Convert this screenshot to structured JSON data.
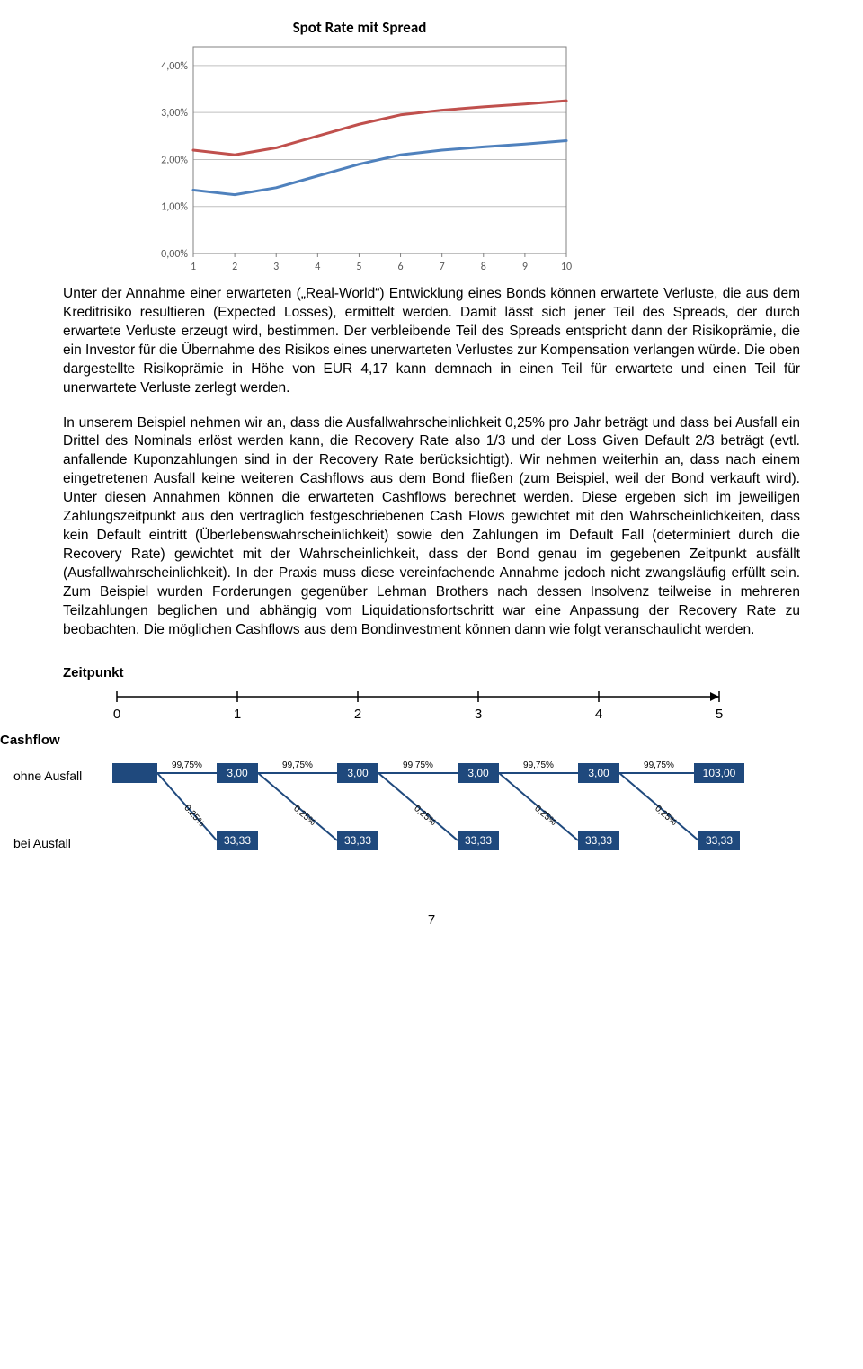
{
  "chart": {
    "title": "Spot Rate mit Spread",
    "y_ticks": [
      "0,00%",
      "1,00%",
      "2,00%",
      "3,00%",
      "4,00%"
    ],
    "y_tick_values": [
      0,
      1,
      2,
      3,
      4
    ],
    "x_ticks": [
      "1",
      "2",
      "3",
      "4",
      "5",
      "6",
      "7",
      "8",
      "9",
      "10"
    ],
    "ylim": [
      0,
      4.4
    ],
    "series": [
      {
        "color": "#c0504d",
        "width": 3,
        "values": [
          2.2,
          2.1,
          2.25,
          2.5,
          2.75,
          2.95,
          3.05,
          3.12,
          3.18,
          3.25
        ]
      },
      {
        "color": "#4f81bd",
        "width": 3,
        "values": [
          1.35,
          1.25,
          1.4,
          1.65,
          1.9,
          2.1,
          2.2,
          2.27,
          2.33,
          2.4
        ]
      }
    ],
    "border_color": "#808080",
    "gridline_color": "#bfbfbf",
    "tick_font_size": 12,
    "title_font_size": 17,
    "background_color": "#ffffff"
  },
  "paragraphs": {
    "p1": "Unter der Annahme einer erwarteten („Real-World“) Entwicklung eines Bonds können erwartete Verluste, die aus dem Kreditrisiko resultieren (Expected Losses), ermittelt werden. Damit lässt sich jener Teil des Spreads, der durch erwartete Verluste erzeugt wird, bestimmen. Der verbleibende Teil des Spreads entspricht dann der Risikoprämie, die ein Investor für die Übernahme des Risikos eines unerwarteten Verlustes zur Kompensation verlangen würde. Die oben dargestellte Risikoprämie in Höhe von EUR 4,17 kann demnach in einen Teil für erwartete und einen Teil für unerwartete Verluste zerlegt werden.",
    "p2": "In unserem Beispiel nehmen wir an, dass die Ausfallwahrscheinlichkeit 0,25% pro Jahr beträgt und dass bei Ausfall ein Drittel des Nominals erlöst werden kann, die Recovery Rate also 1/3 und der Loss Given Default 2/3 beträgt (evtl. anfallende Kuponzahlungen sind in der Recovery Rate berücksichtigt). Wir nehmen weiterhin an, dass nach einem eingetretenen Ausfall keine weiteren Cashflows aus dem Bond fließen (zum Beispiel, weil der Bond verkauft wird). Unter diesen Annahmen können die erwarteten Cashflows berechnet werden. Diese ergeben sich im jeweiligen Zahlungszeitpunkt aus den vertraglich festgeschriebenen Cash Flows gewichtet mit den Wahrscheinlichkeiten, dass kein Default eintritt (Überlebenswahrscheinlichkeit) sowie den Zahlungen im Default Fall (determiniert durch die Recovery Rate) gewichtet mit der Wahrscheinlichkeit, dass der Bond genau im gegebenen Zeitpunkt ausfällt (Ausfallwahrscheinlichkeit). In der Praxis muss diese vereinfachende Annahme jedoch nicht zwangsläufig erfüllt sein. Zum Beispiel wurden Forderungen gegenüber Lehman Brothers nach dessen Insolvenz teilweise in mehreren Teilzahlungen beglichen und abhängig vom Liquidationsfortschritt war eine Anpassung der Recovery Rate zu beobachten. Die möglichen Cashflows aus dem Bondinvestment können dann wie folgt veranschaulicht werden."
  },
  "timeline": {
    "label_zeitpunkt": "Zeitpunkt",
    "label_cashflow": "Cashflow",
    "label_ohne": "ohne Ausfall",
    "label_bei": "bei Ausfall",
    "ticks": [
      "0",
      "1",
      "2",
      "3",
      "4",
      "5"
    ],
    "survive_pct": "99,75%",
    "default_pct": "0,25%",
    "coupon": "3,00",
    "final": "103,00",
    "recovery": "33,33",
    "box_fill": "#1f497d",
    "box_text": "#ffffff",
    "line_color": "#1f497d",
    "label_font_size": 10
  },
  "page_number": "7"
}
